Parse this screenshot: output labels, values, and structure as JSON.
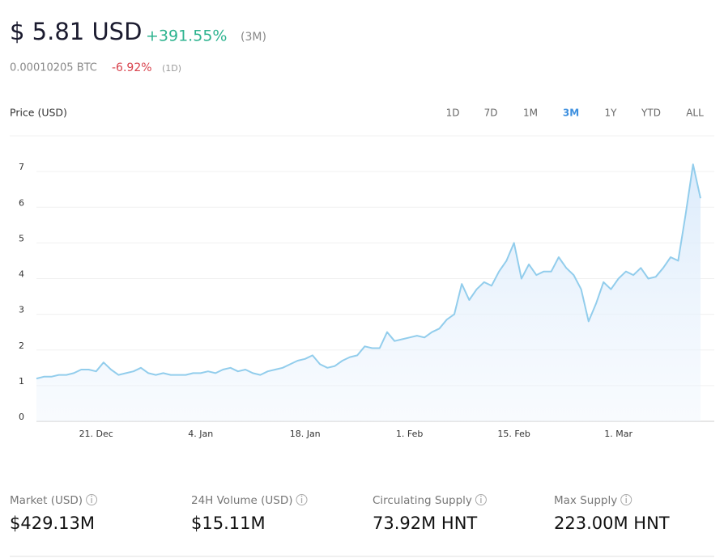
{
  "header": {
    "price": "$ 5.81 USD",
    "change": "+391.55%",
    "change_period": "(3M)",
    "btc_price": "0.00010205 BTC",
    "btc_change": "-6.92%",
    "btc_period": "(1D)"
  },
  "chart_label": "Price (USD)",
  "ranges": [
    "1D",
    "7D",
    "1M",
    "3M",
    "1Y",
    "YTD",
    "ALL"
  ],
  "selected_range": "3M",
  "chart_data": {
    "type": "area",
    "color": "#92cdec",
    "grid": true,
    "x": [
      "13. Dec",
      "14. Dec",
      "15. Dec",
      "16. Dec",
      "17. Dec",
      "18. Dec",
      "19. Dec",
      "20. Dec",
      "21. Dec",
      "22. Dec",
      "23. Dec",
      "24. Dec",
      "25. Dec",
      "26. Dec",
      "27. Dec",
      "28. Dec",
      "29. Dec",
      "30. Dec",
      "31. Dec",
      "1. Jan",
      "2. Jan",
      "3. Jan",
      "4. Jan",
      "5. Jan",
      "6. Jan",
      "7. Jan",
      "8. Jan",
      "9. Jan",
      "10. Jan",
      "11. Jan",
      "12. Jan",
      "13. Jan",
      "14. Jan",
      "15. Jan",
      "16. Jan",
      "17. Jan",
      "18. Jan",
      "19. Jan",
      "20. Jan",
      "21. Jan",
      "22. Jan",
      "23. Jan",
      "24. Jan",
      "25. Jan",
      "26. Jan",
      "27. Jan",
      "28. Jan",
      "29. Jan",
      "30. Jan",
      "31. Jan",
      "1. Feb",
      "2. Feb",
      "3. Feb",
      "4. Feb",
      "5. Feb",
      "6. Feb",
      "7. Feb",
      "8. Feb",
      "9. Feb",
      "10. Feb",
      "11. Feb",
      "12. Feb",
      "13. Feb",
      "14. Feb",
      "15. Feb",
      "16. Feb",
      "17. Feb",
      "18. Feb",
      "19. Feb",
      "20. Feb",
      "21. Feb",
      "22. Feb",
      "23. Feb",
      "24. Feb",
      "25. Feb",
      "26. Feb",
      "27. Feb",
      "28. Feb",
      "1. Mar",
      "2. Mar",
      "3. Mar",
      "4. Mar",
      "5. Mar",
      "6. Mar",
      "7. Mar",
      "8. Mar",
      "9. Mar",
      "10. Mar",
      "11. Mar",
      "12. Mar"
    ],
    "values": [
      1.2,
      1.25,
      1.25,
      1.3,
      1.3,
      1.35,
      1.45,
      1.45,
      1.4,
      1.65,
      1.45,
      1.3,
      1.35,
      1.4,
      1.5,
      1.35,
      1.3,
      1.35,
      1.3,
      1.3,
      1.3,
      1.35,
      1.35,
      1.4,
      1.35,
      1.45,
      1.5,
      1.4,
      1.45,
      1.35,
      1.3,
      1.4,
      1.45,
      1.5,
      1.6,
      1.7,
      1.75,
      1.85,
      1.6,
      1.5,
      1.55,
      1.7,
      1.8,
      1.85,
      2.1,
      2.05,
      2.05,
      2.5,
      2.25,
      2.3,
      2.35,
      2.4,
      2.35,
      2.5,
      2.6,
      2.85,
      3.0,
      3.85,
      3.4,
      3.7,
      3.9,
      3.8,
      4.2,
      4.5,
      5.0,
      4.0,
      4.4,
      4.1,
      4.2,
      4.2,
      4.6,
      4.3,
      4.1,
      3.7,
      2.8,
      3.3,
      3.9,
      3.7,
      4.0,
      4.2,
      4.1,
      4.3,
      4.0,
      4.05,
      4.3,
      4.6,
      4.5,
      5.8,
      7.2,
      6.25
    ],
    "xticks": [
      "21. Dec",
      "4. Jan",
      "18. Jan",
      "1. Feb",
      "15. Feb",
      "1. Mar"
    ],
    "ylim": [
      0,
      8
    ],
    "yticks": [
      0,
      1,
      2,
      3,
      4,
      5,
      6,
      7
    ]
  },
  "stats": [
    {
      "label": "Market (USD)",
      "value": "$429.13M"
    },
    {
      "label": "24H Volume (USD)",
      "value": "$15.11M"
    },
    {
      "label": "Circulating Supply",
      "value": "73.92M HNT"
    },
    {
      "label": "Max Supply",
      "value": "223.00M HNT"
    }
  ]
}
